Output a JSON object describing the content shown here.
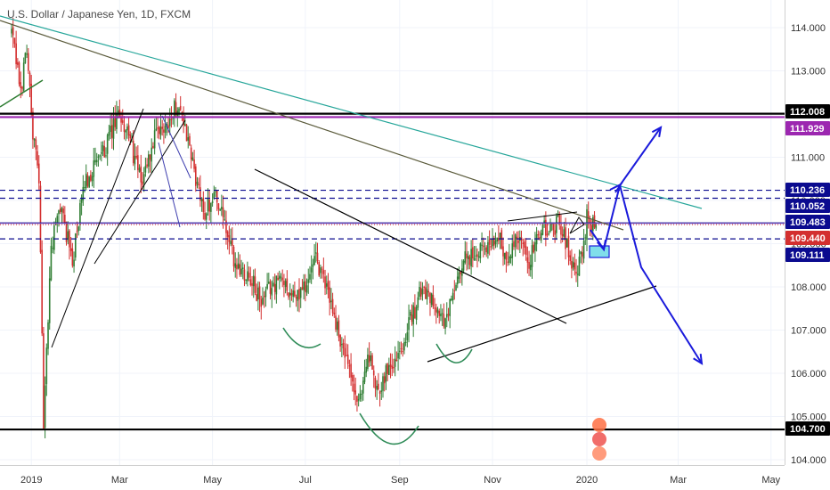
{
  "chart_data": {
    "type": "candlestick",
    "title": "U.S. Dollar / Japanese Yen, 1D, FXCM",
    "x_axis": {
      "ticks": [
        {
          "label": "2019",
          "t": 13
        },
        {
          "label": "Mar",
          "t": 71
        },
        {
          "label": "May",
          "t": 132
        },
        {
          "label": "Jul",
          "t": 193
        },
        {
          "label": "Sep",
          "t": 255
        },
        {
          "label": "Nov",
          "t": 316
        },
        {
          "label": "2020",
          "t": 378
        },
        {
          "label": "Mar",
          "t": 438
        },
        {
          "label": "May",
          "t": 499
        }
      ],
      "range": [
        0,
        510
      ]
    },
    "y_axis": {
      "ticks": [
        "114.000",
        "113.000",
        "112.000",
        "111.000",
        "110.000",
        "109.000",
        "108.000",
        "107.000",
        "106.000",
        "105.000",
        "104.000"
      ],
      "range": [
        103.7,
        114.6
      ]
    },
    "price_anchors": [
      [
        0,
        113.9
      ],
      [
        6,
        112.5
      ],
      [
        10,
        113.6
      ],
      [
        14,
        111.5
      ],
      [
        18,
        110.6
      ],
      [
        21,
        104.8
      ],
      [
        26,
        108.9
      ],
      [
        32,
        109.9
      ],
      [
        40,
        108.6
      ],
      [
        48,
        110.4
      ],
      [
        60,
        111.1
      ],
      [
        71,
        112.0
      ],
      [
        77,
        111.5
      ],
      [
        85,
        110.4
      ],
      [
        94,
        111.4
      ],
      [
        104,
        111.9
      ],
      [
        110,
        112.3
      ],
      [
        118,
        111.0
      ],
      [
        126,
        109.7
      ],
      [
        134,
        110.2
      ],
      [
        140,
        109.4
      ],
      [
        147,
        108.5
      ],
      [
        156,
        108.3
      ],
      [
        164,
        107.6
      ],
      [
        170,
        108.0
      ],
      [
        178,
        108.2
      ],
      [
        186,
        107.7
      ],
      [
        194,
        108.1
      ],
      [
        200,
        108.6
      ],
      [
        208,
        107.9
      ],
      [
        215,
        106.9
      ],
      [
        222,
        106.0
      ],
      [
        228,
        105.2
      ],
      [
        234,
        106.5
      ],
      [
        240,
        105.6
      ],
      [
        248,
        106.2
      ],
      [
        254,
        106.4
      ],
      [
        262,
        107.2
      ],
      [
        270,
        108.0
      ],
      [
        278,
        107.7
      ],
      [
        284,
        107.1
      ],
      [
        292,
        108.0
      ],
      [
        298,
        108.6
      ],
      [
        306,
        108.8
      ],
      [
        314,
        109.0
      ],
      [
        320,
        109.2
      ],
      [
        326,
        108.6
      ],
      [
        332,
        109.1
      ],
      [
        340,
        108.6
      ],
      [
        348,
        109.4
      ],
      [
        354,
        109.3
      ],
      [
        360,
        109.5
      ],
      [
        366,
        108.9
      ],
      [
        370,
        108.3
      ],
      [
        374,
        108.6
      ],
      [
        378,
        109.6
      ],
      [
        384,
        109.4
      ]
    ],
    "horizontal_levels": [
      {
        "label": "112.008",
        "value": 112.008,
        "color": "#000000"
      },
      {
        "label": "111.929",
        "value": 111.929,
        "color": "#9c27b0"
      },
      {
        "label": "110.236",
        "value": 110.236,
        "color": "#0b0b8f"
      },
      {
        "label": "110.052",
        "value": 110.052,
        "color": "#0b0b8f"
      },
      {
        "label": "109.483",
        "value": 109.483,
        "color": "#0b0b8f"
      },
      {
        "label": "109.440",
        "value": 109.44,
        "color": "#d32f2f"
      },
      {
        "label": "109.111",
        "value": 109.111,
        "color": "#0b0b8f"
      },
      {
        "label": "104.700",
        "value": 104.7,
        "color": "#000000"
      }
    ],
    "colors": {
      "up": "#2e7d32",
      "down": "#d32f2f",
      "projection": "#1a1adb",
      "teal": "#26a69a"
    }
  }
}
